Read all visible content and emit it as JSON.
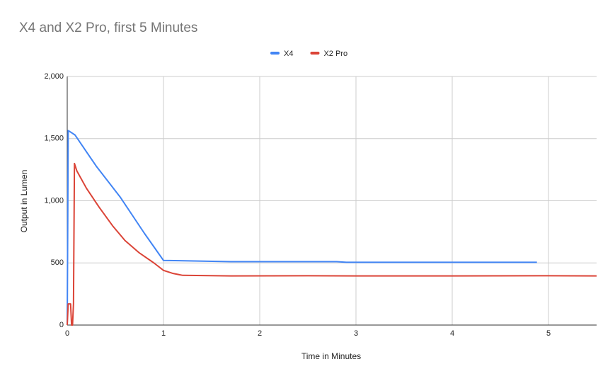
{
  "chart_data": {
    "type": "line",
    "title": "X4 and X2 Pro, first 5 Minutes",
    "x_label": "Time in Minutes",
    "y_label": "Output in Lumen",
    "series": [
      {
        "name": "X4",
        "color": "#4285f4",
        "x": [
          0,
          0.01,
          0.08,
          0.3,
          0.55,
          0.8,
          1.0,
          1.7,
          2.8,
          2.9,
          4.88
        ],
        "values": [
          0,
          1565,
          1530,
          1280,
          1030,
          740,
          520,
          510,
          510,
          505,
          505
        ]
      },
      {
        "name": "X2 Pro",
        "color": "#db4437",
        "x": [
          0,
          0.01,
          0.035,
          0.045,
          0.055,
          0.065,
          0.075,
          0.1,
          0.2,
          0.33,
          0.47,
          0.6,
          0.75,
          0.9,
          1.0,
          1.1,
          1.2,
          1.7,
          2.5,
          3,
          4,
          5,
          5.5
        ],
        "values": [
          0,
          170,
          170,
          0,
          0,
          170,
          1300,
          1240,
          1100,
          950,
          800,
          680,
          580,
          500,
          440,
          415,
          400,
          395,
          397,
          395,
          395,
          397,
          395
        ]
      }
    ],
    "xlim": [
      0,
      5.5
    ],
    "xticks": [
      0,
      1,
      2,
      3,
      4,
      5
    ],
    "ylim": [
      0,
      2000
    ],
    "yticks": [
      0,
      500,
      {
        "value": 1000,
        "label": "1,000"
      },
      {
        "value": 1500,
        "label": "1,500"
      },
      {
        "value": 2000,
        "label": "2,000"
      }
    ],
    "grid": true,
    "legend": "top"
  }
}
